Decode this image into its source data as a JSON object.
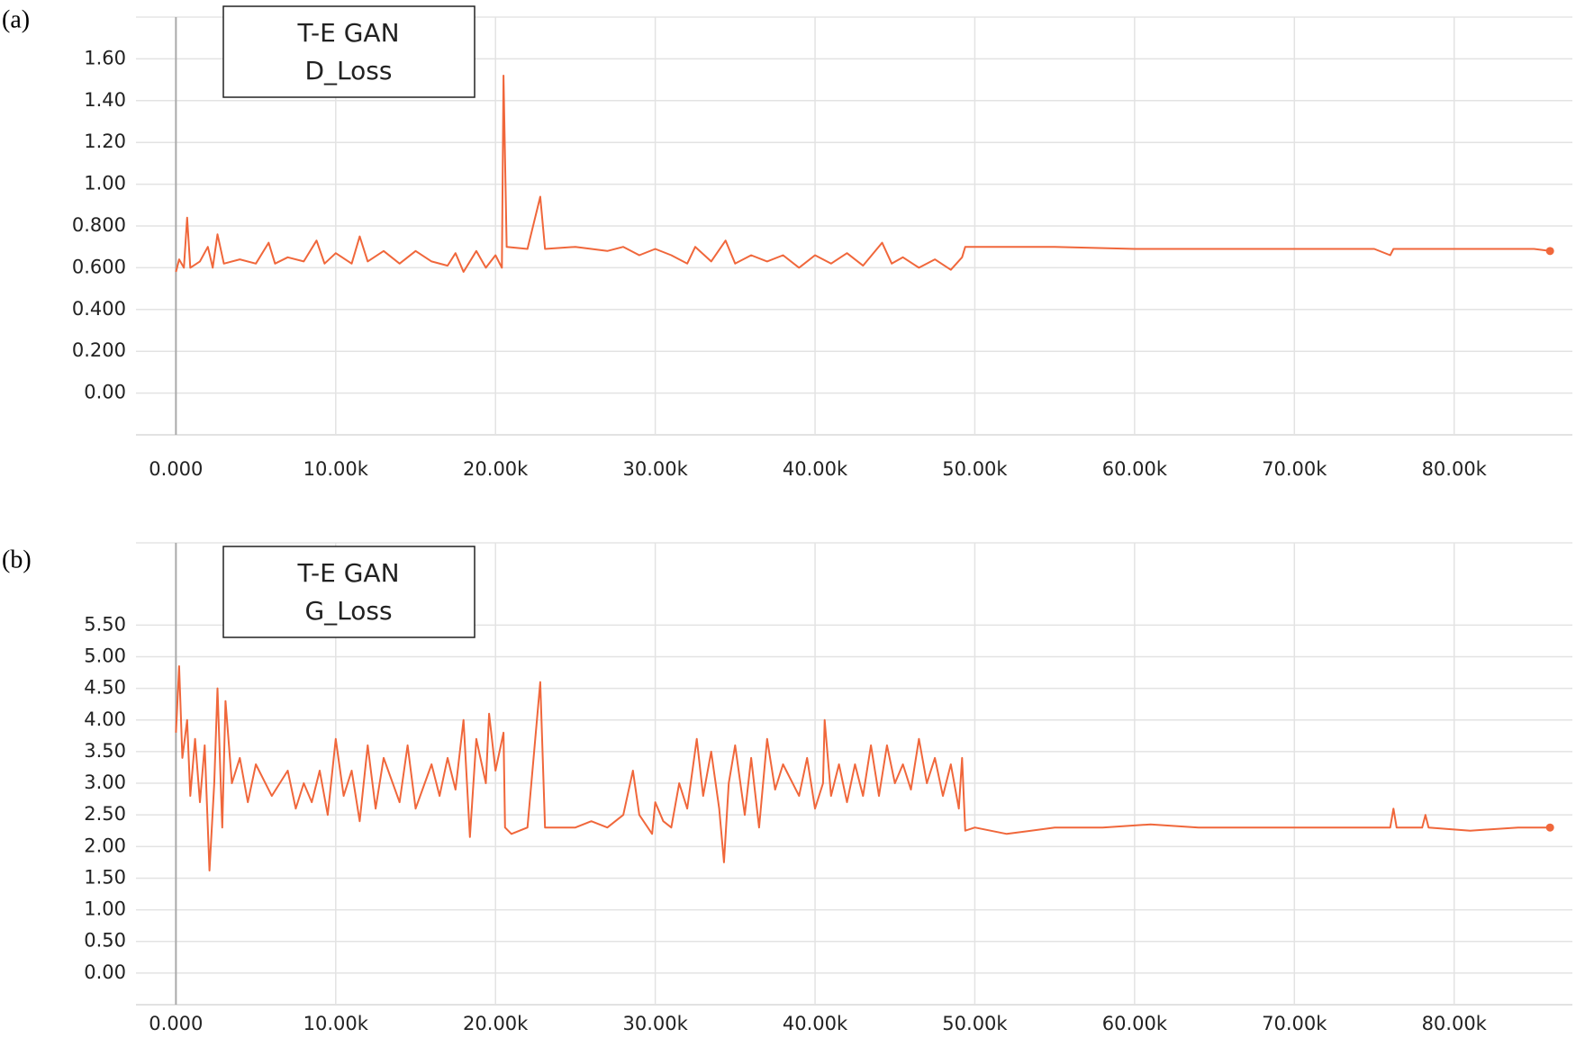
{
  "chart_data": [
    {
      "type": "line",
      "panel_label": "(a)",
      "title": "T-E GAN",
      "subtitle": "D_Loss",
      "color": "#f0673b",
      "x": [
        0,
        200,
        500,
        700,
        900,
        1500,
        2000,
        2300,
        2600,
        3000,
        4000,
        5000,
        5800,
        6200,
        7000,
        8000,
        8800,
        9300,
        10000,
        11000,
        11500,
        12000,
        13000,
        14000,
        15000,
        16000,
        17000,
        17500,
        18000,
        18800,
        19400,
        20000,
        20400,
        20500,
        20700,
        22000,
        22800,
        23100,
        25000,
        27000,
        28000,
        29000,
        30000,
        31000,
        32000,
        32500,
        33500,
        34400,
        35000,
        36000,
        37000,
        38000,
        39000,
        40000,
        41000,
        42000,
        43000,
        44200,
        44800,
        45500,
        46500,
        47500,
        48500,
        49200,
        49400,
        50000,
        55000,
        60000,
        65000,
        70000,
        75000,
        76000,
        76200,
        80000,
        85000,
        86000
      ],
      "values": [
        0.58,
        0.64,
        0.6,
        0.84,
        0.6,
        0.63,
        0.7,
        0.6,
        0.76,
        0.62,
        0.64,
        0.62,
        0.72,
        0.62,
        0.65,
        0.63,
        0.73,
        0.62,
        0.67,
        0.62,
        0.75,
        0.63,
        0.68,
        0.62,
        0.68,
        0.63,
        0.61,
        0.67,
        0.58,
        0.68,
        0.6,
        0.66,
        0.6,
        1.52,
        0.7,
        0.69,
        0.94,
        0.69,
        0.7,
        0.68,
        0.7,
        0.66,
        0.69,
        0.66,
        0.62,
        0.7,
        0.63,
        0.73,
        0.62,
        0.66,
        0.63,
        0.66,
        0.6,
        0.66,
        0.62,
        0.67,
        0.61,
        0.72,
        0.62,
        0.65,
        0.6,
        0.64,
        0.59,
        0.65,
        0.7,
        0.7,
        0.7,
        0.69,
        0.69,
        0.69,
        0.69,
        0.66,
        0.69,
        0.69,
        0.69,
        0.68
      ],
      "xlim": [
        -2500,
        87400
      ],
      "ylim": [
        -0.2,
        1.8
      ],
      "xticks": [
        {
          "value": 0,
          "label": "0.000"
        },
        {
          "value": 10000,
          "label": "10.00k"
        },
        {
          "value": 20000,
          "label": "20.00k"
        },
        {
          "value": 30000,
          "label": "30.00k"
        },
        {
          "value": 40000,
          "label": "40.00k"
        },
        {
          "value": 50000,
          "label": "50.00k"
        },
        {
          "value": 60000,
          "label": "60.00k"
        },
        {
          "value": 70000,
          "label": "70.00k"
        },
        {
          "value": 80000,
          "label": "80.00k"
        }
      ],
      "yticks": [
        {
          "value": 0,
          "label": "0.00"
        },
        {
          "value": 0.2,
          "label": "0.200"
        },
        {
          "value": 0.4,
          "label": "0.400"
        },
        {
          "value": 0.6,
          "label": "0.600"
        },
        {
          "value": 0.8,
          "label": "0.800"
        },
        {
          "value": 1,
          "label": "1.00"
        },
        {
          "value": 1.2,
          "label": "1.20"
        },
        {
          "value": 1.4,
          "label": "1.40"
        },
        {
          "value": 1.6,
          "label": "1.60"
        }
      ],
      "grid": true
    },
    {
      "type": "line",
      "panel_label": "(b)",
      "title": "T-E GAN",
      "subtitle": "G_Loss",
      "color": "#f0673b",
      "x": [
        0,
        200,
        400,
        700,
        900,
        1200,
        1500,
        1800,
        2100,
        2400,
        2600,
        2900,
        3100,
        3500,
        4000,
        4500,
        5000,
        6000,
        7000,
        7500,
        8000,
        8500,
        9000,
        9500,
        10000,
        10500,
        11000,
        11500,
        12000,
        12500,
        13000,
        14000,
        14500,
        15000,
        16000,
        16500,
        17000,
        17500,
        18000,
        18400,
        18800,
        19400,
        19600,
        20000,
        20500,
        20600,
        21000,
        22000,
        22800,
        23100,
        25000,
        26000,
        27000,
        28000,
        28600,
        29000,
        29800,
        30000,
        30500,
        31000,
        31500,
        32000,
        32600,
        33000,
        33500,
        34000,
        34300,
        34600,
        35000,
        35600,
        36000,
        36500,
        37000,
        37500,
        38000,
        39000,
        39500,
        40000,
        40500,
        40600,
        41000,
        41500,
        42000,
        42500,
        43000,
        43500,
        44000,
        44500,
        45000,
        45500,
        46000,
        46500,
        47000,
        47500,
        48000,
        48500,
        49000,
        49200,
        49400,
        50000,
        52000,
        55000,
        58000,
        61000,
        64000,
        67000,
        70000,
        73000,
        76000,
        76200,
        76400,
        78000,
        78200,
        78400,
        81000,
        84000,
        86000
      ],
      "values": [
        3.8,
        4.85,
        3.4,
        4.0,
        2.8,
        3.7,
        2.7,
        3.6,
        1.62,
        3.0,
        4.5,
        2.3,
        4.3,
        3.0,
        3.4,
        2.7,
        3.3,
        2.8,
        3.2,
        2.6,
        3.0,
        2.7,
        3.2,
        2.5,
        3.7,
        2.8,
        3.2,
        2.4,
        3.6,
        2.6,
        3.4,
        2.7,
        3.6,
        2.6,
        3.3,
        2.8,
        3.4,
        2.9,
        4.0,
        2.15,
        3.7,
        3.0,
        4.1,
        3.2,
        3.8,
        2.3,
        2.2,
        2.3,
        4.6,
        2.3,
        2.3,
        2.4,
        2.3,
        2.5,
        3.2,
        2.5,
        2.2,
        2.7,
        2.4,
        2.3,
        3.0,
        2.6,
        3.7,
        2.8,
        3.5,
        2.6,
        1.75,
        3.0,
        3.6,
        2.5,
        3.4,
        2.3,
        3.7,
        2.9,
        3.3,
        2.8,
        3.4,
        2.6,
        3.0,
        4.0,
        2.8,
        3.3,
        2.7,
        3.3,
        2.8,
        3.6,
        2.8,
        3.6,
        3.0,
        3.3,
        2.9,
        3.7,
        3.0,
        3.4,
        2.8,
        3.3,
        2.6,
        3.4,
        2.25,
        2.3,
        2.2,
        2.3,
        2.3,
        2.35,
        2.3,
        2.3,
        2.3,
        2.3,
        2.3,
        2.6,
        2.3,
        2.3,
        2.5,
        2.3,
        2.25,
        2.3,
        2.3
      ],
      "xlim": [
        -2500,
        87400
      ],
      "ylim": [
        -0.5,
        6.8
      ],
      "xticks": [
        {
          "value": 0,
          "label": "0.000"
        },
        {
          "value": 10000,
          "label": "10.00k"
        },
        {
          "value": 20000,
          "label": "20.00k"
        },
        {
          "value": 30000,
          "label": "30.00k"
        },
        {
          "value": 40000,
          "label": "40.00k"
        },
        {
          "value": 50000,
          "label": "50.00k"
        },
        {
          "value": 60000,
          "label": "60.00k"
        },
        {
          "value": 70000,
          "label": "70.00k"
        },
        {
          "value": 80000,
          "label": "80.00k"
        }
      ],
      "yticks": [
        {
          "value": 0,
          "label": "0.00"
        },
        {
          "value": 0.5,
          "label": "0.50"
        },
        {
          "value": 1,
          "label": "1.00"
        },
        {
          "value": 1.5,
          "label": "1.50"
        },
        {
          "value": 2,
          "label": "2.00"
        },
        {
          "value": 2.5,
          "label": "2.50"
        },
        {
          "value": 3,
          "label": "3.00"
        },
        {
          "value": 3.5,
          "label": "3.50"
        },
        {
          "value": 4,
          "label": "4.00"
        },
        {
          "value": 4.5,
          "label": "4.50"
        },
        {
          "value": 5,
          "label": "5.00"
        },
        {
          "value": 5.5,
          "label": "5.50"
        }
      ],
      "grid": true
    }
  ]
}
